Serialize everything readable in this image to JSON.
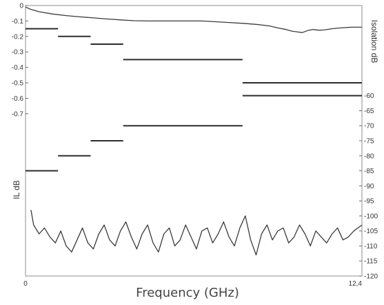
{
  "chart_data": {
    "type": "line",
    "title": "",
    "xlabel": "Frequency (GHz)",
    "x_range": [
      0,
      12.4
    ],
    "x_tick_labels": [
      "0",
      "12,4"
    ],
    "left_axis": {
      "label": "IL dB",
      "range": [
        -1.75,
        0
      ],
      "tick_labels": [
        "0",
        "-0.1",
        "-0.2",
        "-0.3",
        "-0.4",
        "-0.5",
        "-0.6",
        "-0.7"
      ],
      "tick_values": [
        0,
        -0.1,
        -0.2,
        -0.3,
        -0.4,
        -0.5,
        -0.6,
        -0.7
      ]
    },
    "right_axis": {
      "label": "Isolation dB",
      "range": [
        -120,
        -30
      ],
      "tick_labels": [
        "-60",
        "-65",
        "-70",
        "-75",
        "-80",
        "-85",
        "-90",
        "-95",
        "-100",
        "-105",
        "-110",
        "-115",
        "-120"
      ],
      "tick_values": [
        -60,
        -65,
        -70,
        -75,
        -80,
        -85,
        -90,
        -95,
        -100,
        -105,
        -110,
        -115,
        -120
      ]
    },
    "grid": false,
    "series": [
      {
        "role": "insertion-loss-measured",
        "axis": "left",
        "x": [
          0,
          0.2,
          0.5,
          1.0,
          1.5,
          2.0,
          2.5,
          3.0,
          3.5,
          4.0,
          4.5,
          5.0,
          5.5,
          6.0,
          6.5,
          7.0,
          7.5,
          8.0,
          8.5,
          9.0,
          9.3,
          9.6,
          9.8,
          10.0,
          10.2,
          10.4,
          10.6,
          10.8,
          11.0,
          11.3,
          11.6,
          12.0,
          12.4
        ],
        "y": [
          -0.01,
          -0.025,
          -0.04,
          -0.055,
          -0.065,
          -0.073,
          -0.08,
          -0.087,
          -0.093,
          -0.098,
          -0.1,
          -0.1,
          -0.1,
          -0.1,
          -0.1,
          -0.105,
          -0.11,
          -0.115,
          -0.122,
          -0.132,
          -0.145,
          -0.155,
          -0.165,
          -0.17,
          -0.175,
          -0.162,
          -0.155,
          -0.16,
          -0.158,
          -0.15,
          -0.145,
          -0.14,
          -0.14
        ]
      },
      {
        "role": "isolation-measured",
        "axis": "right",
        "x": [
          0.2,
          0.3,
          0.5,
          0.7,
          0.9,
          1.1,
          1.3,
          1.5,
          1.7,
          1.9,
          2.1,
          2.3,
          2.5,
          2.7,
          2.9,
          3.1,
          3.3,
          3.5,
          3.7,
          3.9,
          4.1,
          4.3,
          4.5,
          4.7,
          4.9,
          5.1,
          5.3,
          5.5,
          5.7,
          5.9,
          6.1,
          6.3,
          6.5,
          6.7,
          6.9,
          7.1,
          7.3,
          7.5,
          7.7,
          7.9,
          8.1,
          8.3,
          8.5,
          8.7,
          8.9,
          9.1,
          9.3,
          9.5,
          9.7,
          9.9,
          10.1,
          10.3,
          10.5,
          10.7,
          10.9,
          11.1,
          11.3,
          11.5,
          11.7,
          11.9,
          12.1,
          12.4
        ],
        "y": [
          -98,
          -103,
          -106,
          -104,
          -107,
          -109,
          -105,
          -110,
          -112,
          -108,
          -104,
          -109,
          -111,
          -106,
          -103,
          -108,
          -110,
          -105,
          -102,
          -107,
          -111,
          -106,
          -103,
          -109,
          -112,
          -106,
          -104,
          -110,
          -108,
          -103,
          -107,
          -111,
          -105,
          -104,
          -109,
          -106,
          -102,
          -107,
          -110,
          -104,
          -100,
          -108,
          -113,
          -106,
          -103,
          -108,
          -105,
          -104,
          -109,
          -107,
          -103,
          -106,
          -110,
          -105,
          -107,
          -109,
          -106,
          -104,
          -108,
          -107,
          -105,
          -103
        ]
      },
      {
        "role": "insertion-loss-limit",
        "axis": "left",
        "segments": [
          {
            "x": [
              0,
              1.2
            ],
            "y": -0.15
          },
          {
            "x": [
              1.2,
              2.4
            ],
            "y": -0.2
          },
          {
            "x": [
              2.4,
              3.6
            ],
            "y": -0.25
          },
          {
            "x": [
              3.6,
              8.0
            ],
            "y": -0.35
          },
          {
            "x": [
              8.0,
              12.4
            ],
            "y": -0.5
          }
        ]
      },
      {
        "role": "isolation-limit",
        "axis": "right",
        "segments": [
          {
            "x": [
              0,
              1.2
            ],
            "y": -85
          },
          {
            "x": [
              1.2,
              2.4
            ],
            "y": -80
          },
          {
            "x": [
              2.4,
              3.6
            ],
            "y": -75
          },
          {
            "x": [
              3.6,
              8.0
            ],
            "y": -70
          },
          {
            "x": [
              8.0,
              12.4
            ],
            "y": -60
          }
        ]
      }
    ]
  }
}
